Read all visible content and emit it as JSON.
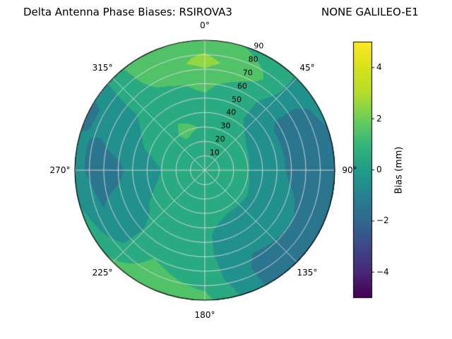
{
  "figure": {
    "title_left": "Delta Antenna Phase Biases: RSIROVA3",
    "title_right": "NONE GALILEO-E1"
  },
  "chart_data": {
    "type": "heatmap",
    "projection": "polar",
    "title": "Delta Antenna Phase Biases: RSIROVA3        NONE GALILEO-E1",
    "theta_direction": "clockwise",
    "theta_zero_location": "top",
    "azimuth_tick_deg": [
      0,
      45,
      90,
      135,
      180,
      225,
      270,
      315
    ],
    "azimuth_tick_labels": [
      "0°",
      "45°",
      "90°",
      "135°",
      "180°",
      "225°",
      "270°",
      "315°"
    ],
    "radial_ticks": [
      10,
      20,
      30,
      40,
      50,
      60,
      70,
      80,
      90
    ],
    "radial_tick_labels": [
      "10",
      "20",
      "30",
      "40",
      "50",
      "60",
      "70",
      "80",
      "90"
    ],
    "radial_max": 90,
    "rlabel_angle_deg": 22.5,
    "contour_level_step_mm": 1,
    "colormap": "viridis",
    "viridis_stops": [
      [
        0.0,
        "#440154"
      ],
      [
        0.1,
        "#482878"
      ],
      [
        0.2,
        "#3e4989"
      ],
      [
        0.3,
        "#31688e"
      ],
      [
        0.4,
        "#26828e"
      ],
      [
        0.5,
        "#1f9e89"
      ],
      [
        0.6,
        "#35b779"
      ],
      [
        0.7,
        "#6ece58"
      ],
      [
        0.8,
        "#b5de2b"
      ],
      [
        0.9,
        "#d8e219"
      ],
      [
        1.0,
        "#fde725"
      ]
    ],
    "grid_lines": {
      "color": "#dcdcdc",
      "spoke_step_deg": 45,
      "circle_step": 10
    },
    "colorbar": {
      "label": "Bias (mm)",
      "min": -5,
      "max": 5,
      "tick_values": [
        -4,
        -2,
        0,
        2,
        4
      ],
      "tick_labels": [
        "−4",
        "−2",
        "0",
        "2",
        "4"
      ]
    },
    "grid_field": {
      "azimuth_deg": [
        0,
        30,
        60,
        90,
        120,
        150,
        180,
        210,
        240,
        270,
        300,
        330
      ],
      "zenith": [
        0,
        15,
        30,
        45,
        60,
        75,
        90
      ],
      "bias_mm": [
        [
          0.4,
          0.5,
          0.9,
          0.7,
          1.2,
          2.3,
          1.6
        ],
        [
          0.4,
          0.4,
          0.3,
          0.1,
          0.4,
          1.2,
          0.6
        ],
        [
          0.4,
          0.3,
          0.1,
          -0.4,
          -1.3,
          -1.4,
          -0.7
        ],
        [
          0.4,
          0.3,
          0.0,
          -0.5,
          -1.2,
          -1.5,
          -1.6
        ],
        [
          0.4,
          0.3,
          0.1,
          -0.3,
          -0.6,
          -1.2,
          -1.4
        ],
        [
          0.4,
          0.3,
          0.1,
          -0.4,
          -0.8,
          -1.3,
          -1.2
        ],
        [
          0.4,
          0.3,
          0.2,
          0.1,
          0.2,
          0.6,
          1.3
        ],
        [
          0.4,
          0.3,
          0.3,
          0.3,
          0.6,
          1.2,
          1.7
        ],
        [
          0.4,
          0.3,
          0.2,
          0.0,
          -0.5,
          -0.8,
          0.6
        ],
        [
          0.4,
          0.3,
          0.0,
          -0.4,
          -1.2,
          -1.4,
          -0.7
        ],
        [
          0.4,
          0.4,
          0.3,
          0.2,
          -0.3,
          -0.7,
          -1.2
        ],
        [
          0.4,
          0.6,
          1.2,
          0.8,
          0.7,
          1.4,
          1.9
        ]
      ]
    }
  }
}
